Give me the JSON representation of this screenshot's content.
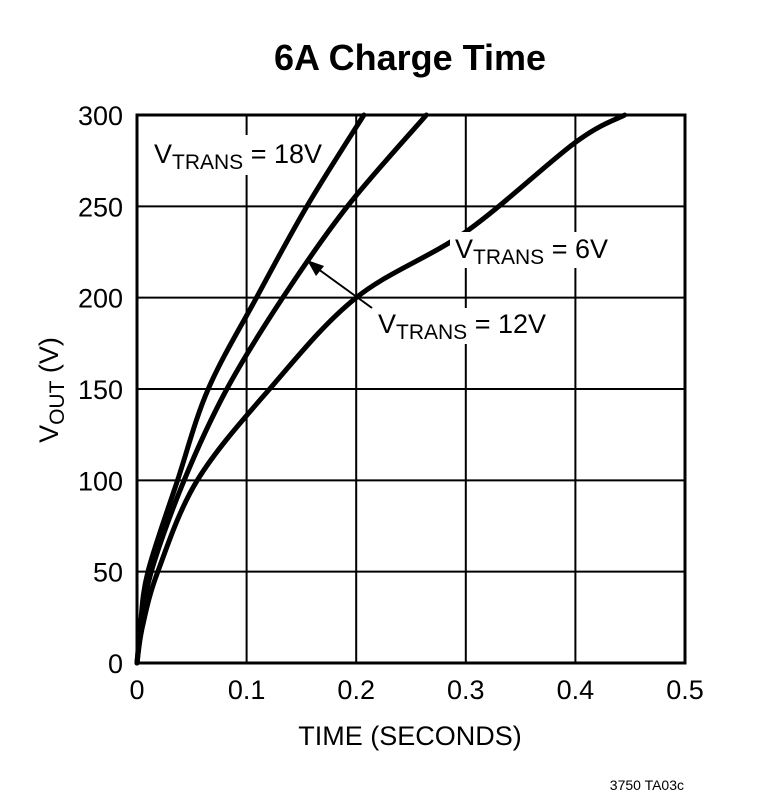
{
  "chart_data": {
    "type": "line",
    "title": "6A Charge Time",
    "xlabel": "TIME (SECONDS)",
    "ylabel": {
      "main": "V",
      "sub": "OUT",
      "rest": " (V)"
    },
    "xlim": [
      0,
      0.5
    ],
    "ylim": [
      0,
      300
    ],
    "xticks": [
      0,
      0.1,
      0.2,
      0.3,
      0.4,
      0.5
    ],
    "xtick_labels": [
      "0",
      "0.1",
      "0.2",
      "0.3",
      "0.4",
      "0.5"
    ],
    "yticks": [
      0,
      50,
      100,
      150,
      200,
      250,
      300
    ],
    "ytick_labels": [
      "0",
      "50",
      "100",
      "150",
      "200",
      "250",
      "300"
    ],
    "grid": true,
    "color": "#000000",
    "series": [
      {
        "label": {
          "main": "V",
          "sub": "TRANS",
          "rest": " = 18V"
        },
        "x": [
          0,
          0.003,
          0.01,
          0.037,
          0.065,
          0.109,
          0.155,
          0.207
        ],
        "y": [
          0,
          20,
          50,
          100,
          150,
          200,
          250,
          300
        ]
      },
      {
        "label": {
          "main": "V",
          "sub": "TRANS",
          "rest": " = 12V"
        },
        "x": [
          0,
          0.004,
          0.013,
          0.043,
          0.082,
          0.133,
          0.192,
          0.264
        ],
        "y": [
          0,
          20,
          50,
          100,
          150,
          200,
          250,
          300
        ]
      },
      {
        "label": {
          "main": "V",
          "sub": "TRANS",
          "rest": " = 6V"
        },
        "x": [
          0,
          0.005,
          0.019,
          0.055,
          0.121,
          0.2,
          0.3,
          0.4,
          0.445
        ],
        "y": [
          0,
          20,
          50,
          100,
          150,
          200,
          236,
          285,
          300
        ]
      }
    ],
    "footnote": "3750 TA03c"
  }
}
